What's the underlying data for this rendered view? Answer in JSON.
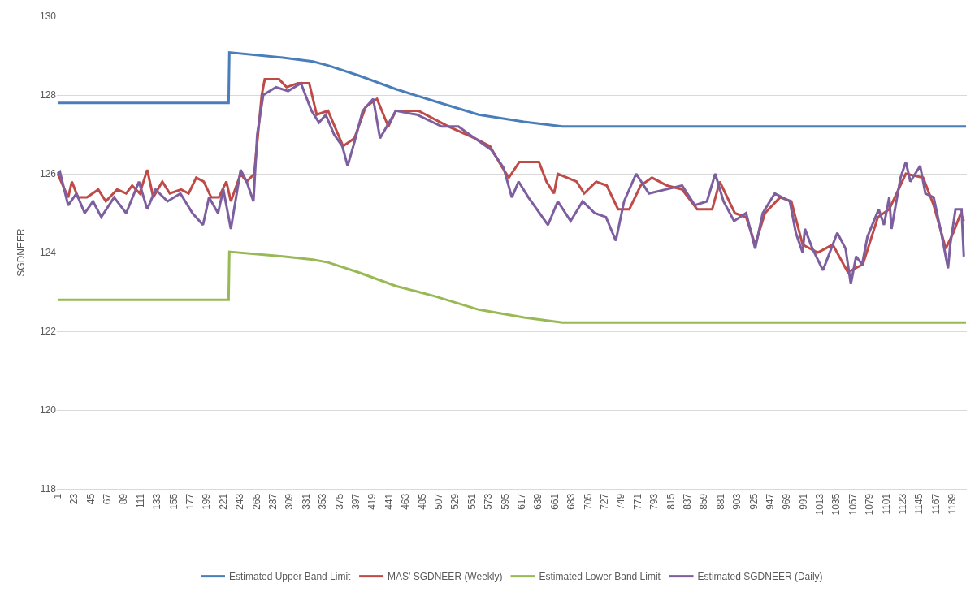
{
  "chart_data": {
    "type": "line",
    "ylabel": "SGDNEER",
    "xlim": [
      0,
      1208
    ],
    "ylim": [
      118,
      130
    ],
    "yticks": [
      118,
      120,
      122,
      124,
      126,
      128,
      130
    ],
    "xticks": [
      1,
      23,
      45,
      67,
      89,
      111,
      133,
      155,
      177,
      199,
      221,
      243,
      265,
      287,
      309,
      331,
      353,
      375,
      397,
      419,
      441,
      463,
      485,
      507,
      529,
      551,
      573,
      595,
      617,
      639,
      661,
      683,
      705,
      727,
      749,
      771,
      793,
      815,
      837,
      859,
      881,
      903,
      925,
      947,
      969,
      991,
      1013,
      1035,
      1057,
      1079,
      1101,
      1123,
      1145,
      1167,
      1189
    ],
    "grid": "y",
    "legend": "bottom",
    "line_style": "solid",
    "marker": "none",
    "series": [
      {
        "name": "Estimated Upper Band Limit",
        "color": "#4a7ebb",
        "x": [
          1,
          228,
          229,
          300,
          340,
          360,
          400,
          450,
          500,
          560,
          620,
          671,
          1207
        ],
        "values": [
          127.8,
          127.8,
          129.08,
          128.95,
          128.85,
          128.75,
          128.5,
          128.15,
          127.85,
          127.5,
          127.32,
          127.2,
          127.2
        ]
      },
      {
        "name": "MAS' SGDNEER (Weekly)",
        "color": "#be4b48",
        "x": [
          1,
          15,
          20,
          28,
          40,
          55,
          65,
          80,
          92,
          100,
          110,
          120,
          128,
          140,
          150,
          165,
          175,
          185,
          195,
          205,
          215,
          225,
          231,
          244,
          252,
          262,
          272,
          276,
          295,
          305,
          320,
          335,
          345,
          360,
          380,
          395,
          410,
          425,
          440,
          450,
          480,
          520,
          555,
          575,
          590,
          600,
          614,
          640,
          650,
          660,
          665,
          690,
          700,
          716,
          730,
          745,
          760,
          775,
          790,
          810,
          830,
          850,
          870,
          880,
          900,
          915,
          927,
          940,
          960,
          975,
          990,
          1010,
          1030,
          1050,
          1070,
          1090,
          1105,
          1127,
          1150,
          1164,
          1180,
          1190,
          1200,
          1204
        ],
        "values": [
          126.0,
          125.4,
          125.8,
          125.4,
          125.4,
          125.6,
          125.3,
          125.6,
          125.5,
          125.7,
          125.5,
          126.1,
          125.4,
          125.8,
          125.5,
          125.6,
          125.5,
          125.9,
          125.8,
          125.4,
          125.4,
          125.8,
          125.3,
          126.0,
          125.8,
          126.0,
          128.0,
          128.4,
          128.4,
          128.2,
          128.3,
          128.3,
          127.5,
          127.6,
          126.7,
          126.9,
          127.7,
          127.9,
          127.2,
          127.6,
          127.6,
          127.2,
          126.9,
          126.7,
          126.2,
          125.9,
          126.3,
          126.3,
          125.8,
          125.5,
          126.0,
          125.8,
          125.5,
          125.8,
          125.7,
          125.1,
          125.1,
          125.7,
          125.9,
          125.7,
          125.6,
          125.1,
          125.1,
          125.8,
          125.0,
          124.9,
          124.2,
          125.0,
          125.4,
          125.3,
          124.2,
          124.0,
          124.2,
          123.5,
          123.7,
          124.9,
          125.1,
          126.0,
          125.9,
          125.2,
          124.1,
          124.5,
          125.0,
          124.8
        ]
      },
      {
        "name": "Estimated Lower Band Limit",
        "color": "#98b954",
        "x": [
          1,
          228,
          229,
          300,
          340,
          360,
          400,
          450,
          500,
          560,
          620,
          671,
          1207
        ],
        "values": [
          122.8,
          122.8,
          124.02,
          123.9,
          123.82,
          123.75,
          123.5,
          123.15,
          122.9,
          122.55,
          122.35,
          122.22,
          122.22
        ]
      },
      {
        "name": "Estimated SGDNEER (Daily)",
        "color": "#7d5fa0",
        "x": [
          1,
          4,
          15,
          26,
          37,
          48,
          59,
          76,
          92,
          109,
          120,
          131,
          147,
          164,
          180,
          194,
          202,
          214,
          221,
          231,
          244,
          252,
          261,
          266,
          274,
          291,
          307,
          324,
          338,
          348,
          357,
          368,
          379,
          386,
          395,
          406,
          420,
          429,
          450,
          478,
          511,
          533,
          555,
          577,
          593,
          604,
          613,
          626,
          652,
          665,
          682,
          698,
          714,
          729,
          742,
          753,
          769,
          786,
          808,
          830,
          847,
          863,
          874,
          885,
          899,
          915,
          927,
          937,
          953,
          973,
          981,
          990,
          993,
          1003,
          1017,
          1036,
          1047,
          1054,
          1061,
          1069,
          1076,
          1091,
          1098,
          1105,
          1108,
          1120,
          1127,
          1133,
          1146,
          1153,
          1164,
          1174,
          1183,
          1186,
          1193,
          1201,
          1204
        ],
        "values": [
          126.0,
          126.05,
          125.2,
          125.5,
          125.0,
          125.3,
          124.9,
          125.4,
          125.0,
          125.8,
          125.1,
          125.6,
          125.3,
          125.5,
          125.0,
          124.7,
          125.4,
          125.0,
          125.6,
          124.6,
          126.1,
          125.8,
          125.3,
          127.0,
          128.0,
          128.2,
          128.1,
          128.3,
          127.6,
          127.3,
          127.5,
          127.0,
          126.7,
          126.2,
          126.8,
          127.6,
          127.9,
          126.9,
          127.6,
          127.5,
          127.2,
          127.2,
          126.9,
          126.6,
          126.15,
          125.4,
          125.8,
          125.4,
          124.7,
          125.3,
          124.8,
          125.3,
          125.0,
          124.9,
          124.3,
          125.3,
          126.0,
          125.5,
          125.6,
          125.7,
          125.2,
          125.3,
          126.0,
          125.3,
          124.8,
          125.0,
          124.1,
          125.0,
          125.5,
          125.3,
          124.5,
          124.0,
          124.6,
          124.1,
          123.55,
          124.5,
          124.1,
          123.2,
          123.9,
          123.7,
          124.4,
          125.1,
          124.7,
          125.4,
          124.6,
          125.9,
          126.3,
          125.8,
          126.2,
          125.5,
          125.4,
          124.5,
          123.6,
          124.2,
          125.1,
          125.1,
          123.9
        ]
      }
    ]
  }
}
